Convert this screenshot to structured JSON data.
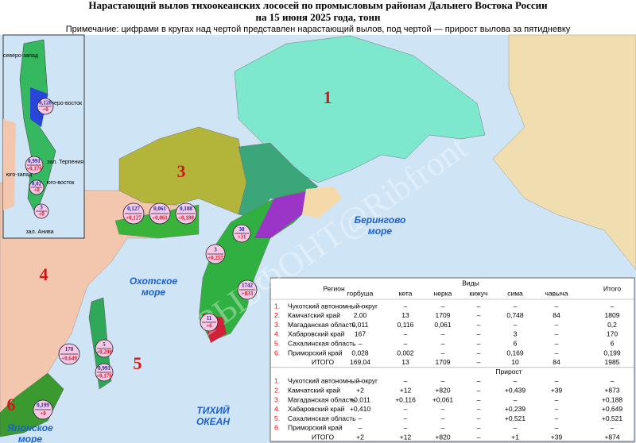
{
  "header": {
    "title": "Нарастающий вылов тихоокеанских лососей по промысловым районам Дальнего Востока России",
    "subtitle": "на 15 июня 2025 года, тонн",
    "note": "Примечание: цифрами в кругах над чертой представлен нарастающий вылов, под чертой — прирост вылова за пятидневку"
  },
  "map": {
    "region_numbers": [
      "1",
      "3",
      "4",
      "5",
      "6"
    ],
    "seas": [
      [
        "Охотское",
        "море"
      ],
      [
        "Берингово",
        "море"
      ],
      [
        "ТИХИЙ",
        "ОКЕАН"
      ],
      [
        "Японское",
        "море"
      ]
    ],
    "inset_labels": [
      "северо-запад",
      "северо-восток",
      "зал. Терпения",
      "юго-запад",
      "юго-восток",
      "зал. Анива"
    ],
    "watermark": "РЫБФОНТ@Ribfront",
    "circles": [
      {
        "catch": "0,128",
        "increment": "+0"
      },
      {
        "catch": "0,991",
        "increment": "+0,176"
      },
      {
        "catch": "0,02",
        "increment": "+0"
      },
      {
        "catch": "3",
        "increment": "+0"
      },
      {
        "catch": "0,127",
        "increment": "+0,127"
      },
      {
        "catch": "0,061",
        "increment": "+0,061"
      },
      {
        "catch": "0,188",
        "increment": "+0,188"
      },
      {
        "catch": "3",
        "increment": "+0,257"
      },
      {
        "catch": "38",
        "increment": "+31"
      },
      {
        "catch": "1742",
        "increment": "+833"
      },
      {
        "catch": "11",
        "increment": "+6"
      },
      {
        "catch": "170",
        "increment": "+0,649"
      },
      {
        "catch": "5",
        "increment": "+0,298"
      },
      {
        "catch": "0,991",
        "increment": "+0,176"
      },
      {
        "catch": "0,199",
        "increment": "+0"
      }
    ]
  },
  "table": {
    "region_header": "Регион",
    "species_header": "Виды",
    "columns": [
      "горбуша",
      "кета",
      "нерка",
      "кижуч",
      "сима",
      "чавыча"
    ],
    "total_header": "Итого",
    "sections": [
      {
        "rows": [
          {
            "num": "1.",
            "region": "Чукотский автономный округ",
            "values": [
              "–",
              "–",
              "–",
              "–",
              "–",
              "–",
              "–"
            ]
          },
          {
            "num": "2.",
            "region": "Камчатский край",
            "values": [
              "2,00",
              "13",
              "1709",
              "–",
              "0,748",
              "84",
              "1809"
            ]
          },
          {
            "num": "3.",
            "region": "Магаданская область",
            "values": [
              "0,011",
              "0,116",
              "0,061",
              "–",
              "–",
              "–",
              "0,2"
            ]
          },
          {
            "num": "4.",
            "region": "Хабаровский край",
            "values": [
              "167",
              "–",
              "–",
              "–",
              "3",
              "–",
              "170"
            ]
          },
          {
            "num": "5.",
            "region": "Сахалинская область",
            "values": [
              "–",
              "–",
              "–",
              "–",
              "6",
              "–",
              "6"
            ]
          },
          {
            "num": "6.",
            "region": "Приморский край",
            "values": [
              "0,028",
              "0,002",
              "–",
              "–",
              "0,169",
              "–",
              "0,199"
            ]
          }
        ],
        "total": {
          "label": "ИТОГО",
          "values": [
            "169,04",
            "13",
            "1709",
            "–",
            "10",
            "84",
            "1985"
          ]
        }
      },
      {
        "title": "Прирост",
        "rows": [
          {
            "num": "1.",
            "region": "Чукотский автономный округ",
            "values": [
              "–",
              "–",
              "–",
              "–",
              "–",
              "–",
              "–"
            ]
          },
          {
            "num": "2.",
            "region": "Камчатский край",
            "values": [
              "+2",
              "+12",
              "+820",
              "–",
              "+0,439",
              "+39",
              "+873"
            ]
          },
          {
            "num": "3.",
            "region": "Магаданская область",
            "values": [
              "+0,011",
              "+0,116",
              "+0,061",
              "–",
              "–",
              "–",
              "+0,188"
            ]
          },
          {
            "num": "4.",
            "region": "Хабаровский край",
            "values": [
              "+0,410",
              "–",
              "–",
              "–",
              "+0,239",
              "–",
              "+0,649"
            ]
          },
          {
            "num": "5.",
            "region": "Сахалинская область",
            "values": [
              "–",
              "–",
              "–",
              "–",
              "+0,521",
              "–",
              "+0,521"
            ]
          },
          {
            "num": "6.",
            "region": "Приморский край",
            "values": [
              "–",
              "–",
              "–",
              "–",
              "–",
              "–",
              "–"
            ]
          }
        ],
        "total": {
          "label": "ИТОГО",
          "values": [
            "+2",
            "+12",
            "+820",
            "–",
            "+1",
            "+39",
            "+874"
          ]
        }
      }
    ]
  }
}
